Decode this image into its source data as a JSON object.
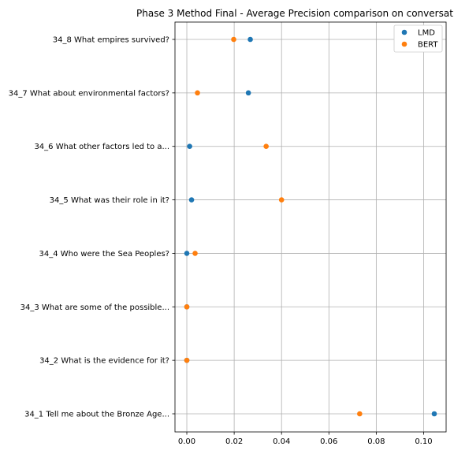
{
  "chart_data": {
    "type": "scatter",
    "title": "Phase 3 Method Final - Average Precision comparison on conversat",
    "xlabel": "",
    "ylabel": "",
    "categories": [
      "34_1 Tell me about the Bronze Age...",
      "34_2 What is the evidence for it?",
      "34_3 What are some of the possible...",
      "34_4 Who were the Sea Peoples?",
      "34_5 What was their role in it?",
      "34_6 What other factors led to a...",
      "34_7 What about environmental factors?",
      "34_8 What empires survived?"
    ],
    "series": [
      {
        "name": "LMD",
        "color": "#1f77b4",
        "values": [
          0.1045,
          0.0,
          0.0,
          0.0,
          0.002,
          0.0012,
          0.026,
          0.0268
        ]
      },
      {
        "name": "BERT",
        "color": "#ff7f0e",
        "values": [
          0.073,
          0.0,
          0.0,
          0.0035,
          0.04,
          0.0335,
          0.0045,
          0.0198
        ]
      }
    ],
    "xlim": [
      -0.005,
      0.1095
    ],
    "xticks": [
      "0.00",
      "0.02",
      "0.04",
      "0.06",
      "0.08",
      "0.10"
    ],
    "xtick_values": [
      0.0,
      0.02,
      0.04,
      0.06,
      0.08,
      0.1
    ],
    "grid": true,
    "legend_position": "top-right"
  }
}
